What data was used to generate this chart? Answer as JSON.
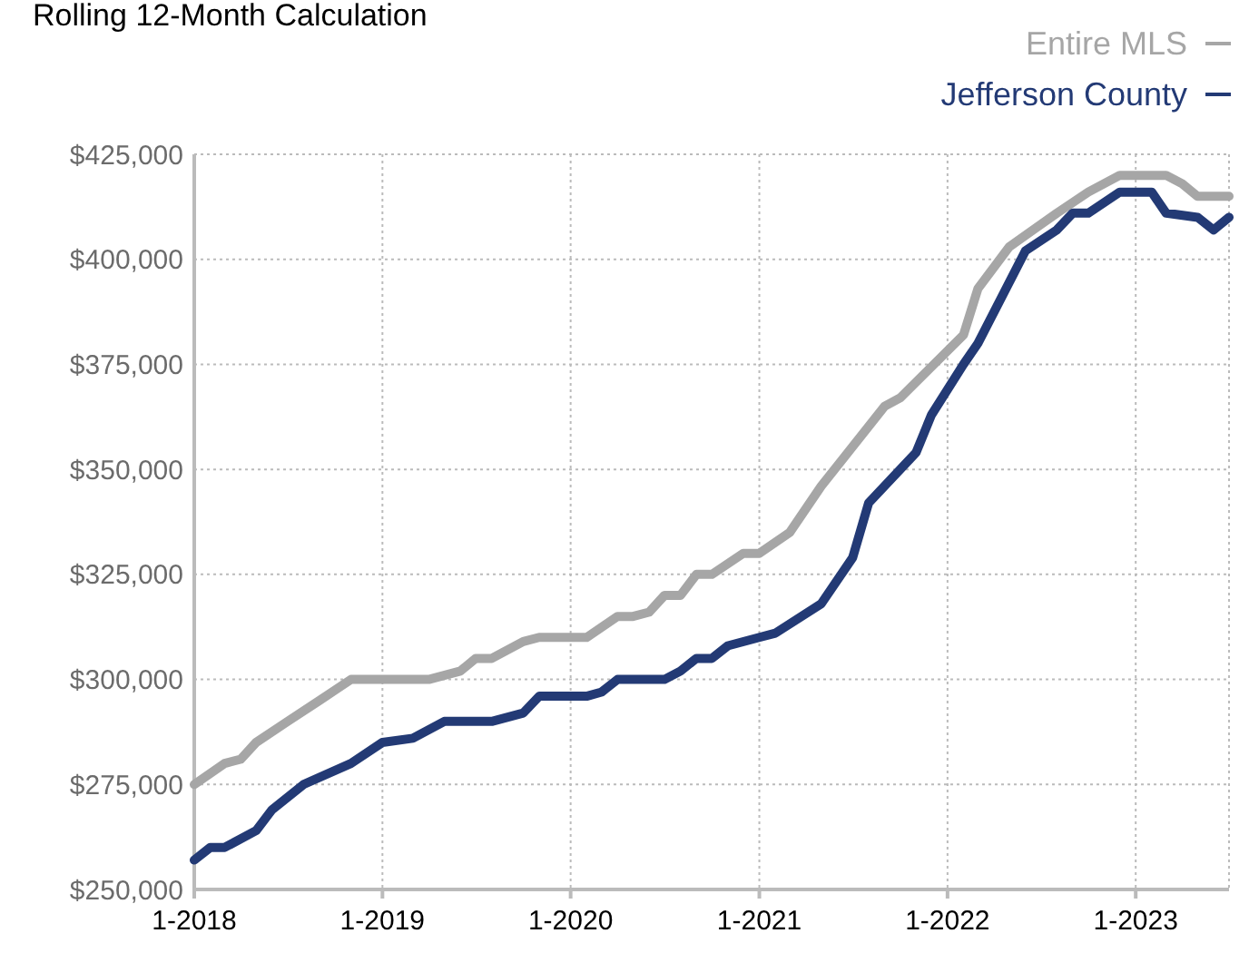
{
  "chart_data": {
    "type": "line",
    "title": "Rolling 12-Month Calculation",
    "legend": "top right",
    "grid": true,
    "line_style": "solid",
    "marker": "none",
    "xlim": [
      "2018-01",
      "2023-07"
    ],
    "xticks": [
      {
        "value": "2018-01",
        "label": "1-2018"
      },
      {
        "value": "2019-01",
        "label": "1-2019"
      },
      {
        "value": "2020-01",
        "label": "1-2020"
      },
      {
        "value": "2021-01",
        "label": "1-2021"
      },
      {
        "value": "2022-01",
        "label": "1-2022"
      },
      {
        "value": "2023-01",
        "label": "1-2023"
      }
    ],
    "ylim": [
      250000,
      425000
    ],
    "yticks": [
      {
        "value": 250000,
        "label": "$250,000"
      },
      {
        "value": 275000,
        "label": "$275,000"
      },
      {
        "value": 300000,
        "label": "$300,000"
      },
      {
        "value": 325000,
        "label": "$325,000"
      },
      {
        "value": 350000,
        "label": "$350,000"
      },
      {
        "value": 375000,
        "label": "$375,000"
      },
      {
        "value": 400000,
        "label": "$400,000"
      },
      {
        "value": 425000,
        "label": "$425,000"
      }
    ],
    "series": [
      {
        "name": "Entire MLS",
        "color": "#a6a6a6",
        "x": [
          "2018-01",
          "2018-03",
          "2018-04",
          "2018-05",
          "2018-07",
          "2018-09",
          "2018-11",
          "2019-01",
          "2019-04",
          "2019-06",
          "2019-07",
          "2019-08",
          "2019-10",
          "2019-11",
          "2020-01",
          "2020-02",
          "2020-04",
          "2020-05",
          "2020-06",
          "2020-07",
          "2020-08",
          "2020-09",
          "2020-10",
          "2020-12",
          "2021-01",
          "2021-03",
          "2021-05",
          "2021-09",
          "2021-10",
          "2022-02",
          "2022-03",
          "2022-05",
          "2022-08",
          "2022-10",
          "2022-12",
          "2023-03",
          "2023-04",
          "2023-05",
          "2023-07"
        ],
        "values": [
          275000,
          280000,
          281000,
          285000,
          290000,
          295000,
          300000,
          300000,
          300000,
          302000,
          305000,
          305000,
          309000,
          310000,
          310000,
          310000,
          315000,
          315000,
          316000,
          320000,
          320000,
          325000,
          325000,
          330000,
          330000,
          335000,
          346000,
          365000,
          367000,
          382000,
          393000,
          403000,
          411000,
          416000,
          420000,
          420000,
          418000,
          415000,
          415000
        ]
      },
      {
        "name": "Jefferson County",
        "color": "#233a75",
        "x": [
          "2018-01",
          "2018-02",
          "2018-03",
          "2018-05",
          "2018-06",
          "2018-08",
          "2018-11",
          "2019-01",
          "2019-03",
          "2019-05",
          "2019-08",
          "2019-10",
          "2019-11",
          "2020-02",
          "2020-03",
          "2020-04",
          "2020-07",
          "2020-08",
          "2020-09",
          "2020-10",
          "2020-11",
          "2021-01",
          "2021-02",
          "2021-05",
          "2021-07",
          "2021-08",
          "2021-11",
          "2021-12",
          "2022-02",
          "2022-03",
          "2022-06",
          "2022-08",
          "2022-09",
          "2022-10",
          "2022-12",
          "2023-02",
          "2023-03",
          "2023-05",
          "2023-06",
          "2023-07"
        ],
        "values": [
          257000,
          260000,
          260000,
          264000,
          269000,
          275000,
          280000,
          285000,
          286000,
          290000,
          290000,
          292000,
          296000,
          296000,
          297000,
          300000,
          300000,
          302000,
          305000,
          305000,
          308000,
          310000,
          311000,
          318000,
          329000,
          342000,
          354000,
          363000,
          375000,
          380000,
          402000,
          407000,
          411000,
          411000,
          416000,
          416000,
          411000,
          410000,
          407000,
          410000
        ]
      }
    ]
  }
}
